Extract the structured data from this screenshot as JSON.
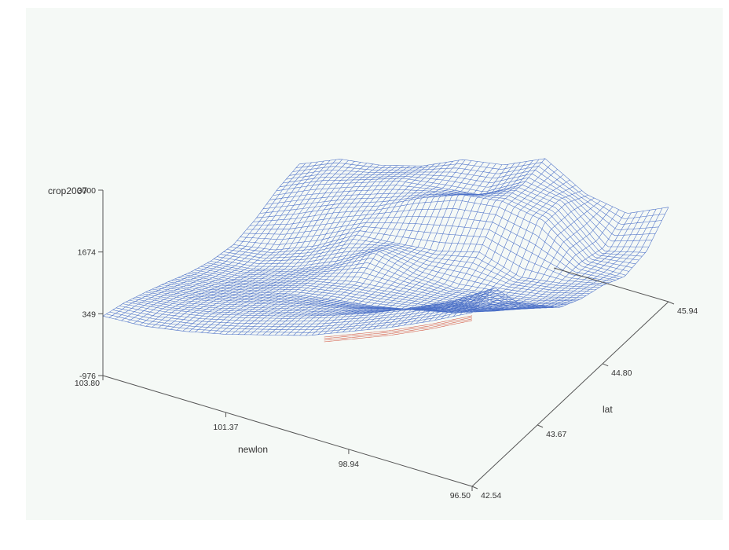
{
  "chart_data": {
    "type": "wireframe-surface",
    "title": "",
    "zlabel": "crop2007",
    "xlabel": "newlon",
    "ylabel": "lat",
    "x_ticks": [
      "103.80",
      "101.37",
      "98.94",
      "96.50"
    ],
    "x_tick_values": [
      103.8,
      101.37,
      98.94,
      96.5
    ],
    "y_ticks": [
      "42.54",
      "43.67",
      "44.80",
      "45.94"
    ],
    "y_tick_values": [
      42.54,
      43.67,
      44.8,
      45.94
    ],
    "z_ticks": [
      "-976",
      "349",
      "1674",
      "3000"
    ],
    "z_tick_values": [
      -976,
      349,
      1674,
      3000
    ],
    "xlim": [
      96.5,
      103.8
    ],
    "ylim": [
      42.54,
      45.94
    ],
    "zlim": [
      -976,
      3000
    ],
    "surface_color": "#4a6fc7",
    "underside_color": "#d2553f",
    "grid": false,
    "surface": {
      "newlon": [
        103.8,
        102.99,
        102.18,
        101.37,
        100.56,
        99.75,
        98.94,
        98.13,
        97.32,
        96.5
      ],
      "lat": [
        42.54,
        42.92,
        43.3,
        43.67,
        44.05,
        44.42,
        44.8,
        45.18,
        45.56,
        45.94
      ],
      "crop2007": [
        [
          300,
          350,
          500,
          700,
          950,
          1200,
          1550,
          1900,
          2300,
          2750
        ],
        [
          150,
          250,
          420,
          650,
          900,
          1180,
          1500,
          1880,
          2300,
          2850
        ],
        [
          -60,
          60,
          250,
          480,
          700,
          900,
          1150,
          1420,
          1750,
          2100
        ],
        [
          -280,
          -180,
          30,
          250,
          400,
          520,
          700,
          900,
          1200,
          1600
        ],
        [
          -520,
          -420,
          -200,
          120,
          300,
          400,
          500,
          600,
          800,
          1100
        ],
        [
          -700,
          -600,
          -350,
          20,
          550,
          350,
          300,
          450,
          600,
          850
        ],
        [
          -800,
          -650,
          -300,
          200,
          280,
          380,
          620,
          350,
          480,
          700
        ],
        [
          -700,
          -350,
          50,
          350,
          800,
          1150,
          1250,
          1100,
          450,
          450
        ],
        [
          -500,
          -100,
          200,
          500,
          600,
          700,
          1200,
          1100,
          300,
          550
        ],
        [
          -400,
          -30,
          100,
          350,
          750,
          900,
          1300,
          800,
          650,
          1050
        ]
      ]
    }
  }
}
